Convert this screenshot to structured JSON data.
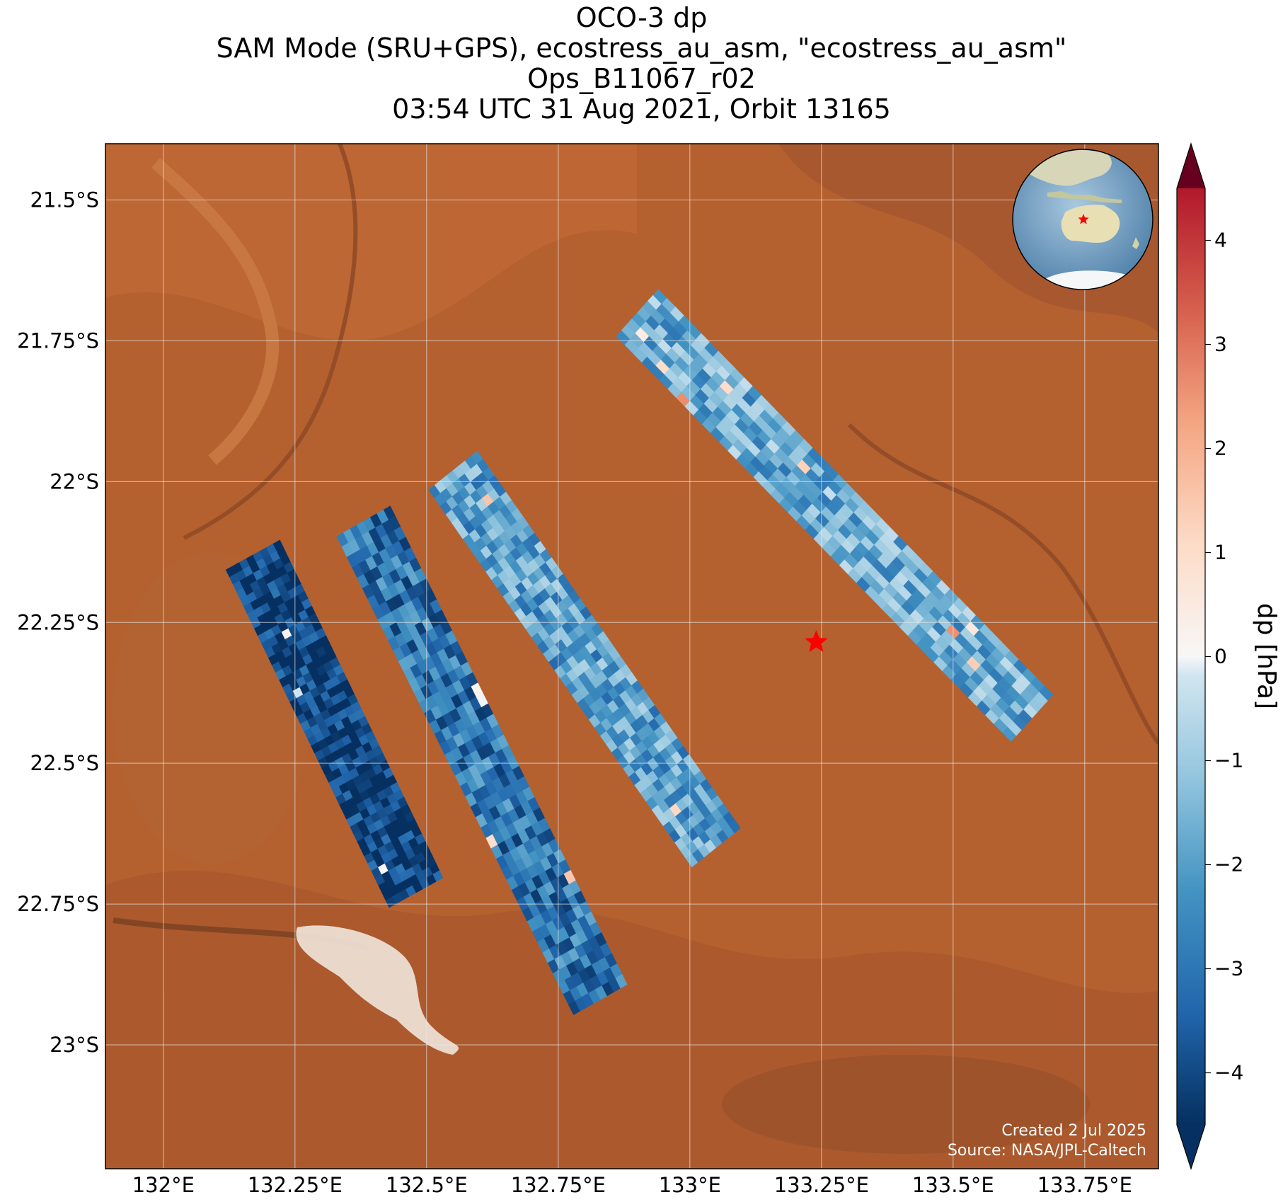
{
  "title": {
    "line1": "OCO-3 dp",
    "line2": "SAM Mode (SRU+GPS), ecostress_au_asm, \"ecostress_au_asm\"",
    "line3": "Ops_B11067_r02",
    "line4": "03:54 UTC 31 Aug 2021, Orbit 13165"
  },
  "map": {
    "basemap": "satellite imagery, central Australia desert",
    "lon_range": [
      131.89,
      133.89
    ],
    "lat_range": [
      -23.22,
      -21.4
    ],
    "lon_ticks": [
      132.0,
      132.25,
      132.5,
      132.75,
      133.0,
      133.25,
      133.5,
      133.75
    ],
    "lon_tick_labels": [
      "132°E",
      "132.25°E",
      "132.5°E",
      "132.75°E",
      "133°E",
      "133.25°E",
      "133.5°E",
      "133.75°E"
    ],
    "lat_ticks": [
      -21.5,
      -21.75,
      -22.0,
      -22.25,
      -22.5,
      -22.75,
      -23.0
    ],
    "lat_tick_labels": [
      "21.5°S",
      "21.75°S",
      "22°S",
      "22.25°S",
      "22.5°S",
      "22.75°S",
      "23°S"
    ],
    "gridlines": true,
    "target_marker": {
      "lon": 133.24,
      "lat": -22.285,
      "symbol": "red star"
    },
    "credit_line1": "Created 2 Jul 2025",
    "credit_line2": "Source: NASA/JPL-Caltech"
  },
  "inset_globe": {
    "description": "orthographic globe centered on Australia",
    "marker": "red star over central Australia",
    "position": "top-right"
  },
  "colorbar": {
    "label": "dp [hPa]",
    "colormap": "RdBu_r",
    "range": [
      -4.5,
      4.5
    ],
    "extend": "both",
    "ticks": [
      -4,
      -3,
      -2,
      -1,
      0,
      1,
      2,
      3,
      4
    ],
    "tick_labels": [
      "−4",
      "−3",
      "−2",
      "−1",
      "0",
      "1",
      "2",
      "3",
      "4"
    ]
  },
  "chart_data": {
    "type": "heatmap",
    "variable": "dp",
    "units": "hPa",
    "swaths": [
      {
        "lon_start": 132.17,
        "lat_start": -22.13,
        "lon_end": 132.48,
        "lat_end": -22.73,
        "mean_dp": -4.3
      },
      {
        "lon_start": 132.38,
        "lat_start": -22.07,
        "lon_end": 132.83,
        "lat_end": -22.92,
        "mean_dp": -3.0
      },
      {
        "lon_start": 132.55,
        "lat_start": -21.98,
        "lon_end": 133.05,
        "lat_end": -22.65,
        "mean_dp": -2.0
      },
      {
        "lon_start": 132.9,
        "lat_start": -21.7,
        "lon_end": 133.65,
        "lat_end": -22.42,
        "mean_dp": -1.7
      }
    ],
    "colors": {
      "low": "#053061",
      "zero": "#f7f7f7",
      "high": "#67001f"
    }
  }
}
